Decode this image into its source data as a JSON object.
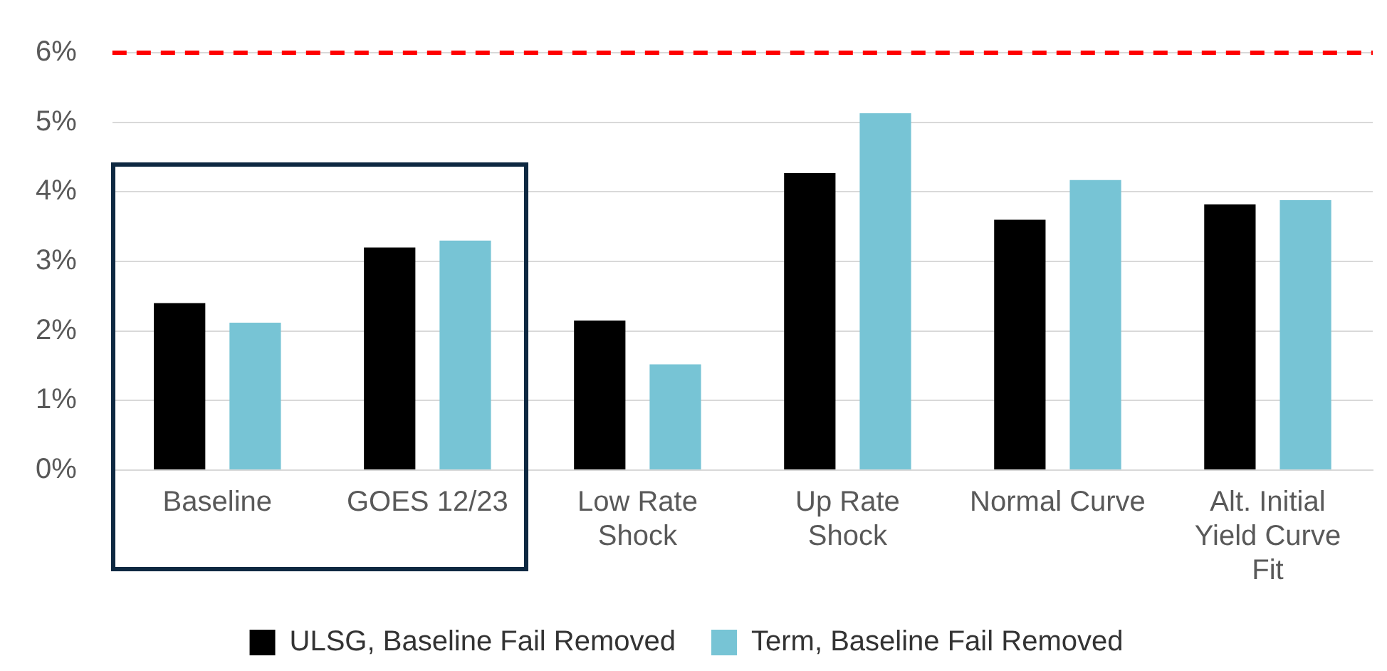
{
  "chart_data": {
    "type": "bar",
    "categories": [
      "Baseline",
      "GOES 12/23",
      "Low Rate Shock",
      "Up Rate Shock",
      "Normal Curve",
      "Alt. Initial Yield Curve Fit"
    ],
    "series": [
      {
        "name": "ULSG, Baseline Fail Removed",
        "color": "#000000",
        "values": [
          2.4,
          3.2,
          2.15,
          4.27,
          3.6,
          3.82
        ]
      },
      {
        "name": "Term, Baseline Fail Removed",
        "color": "#77c4d5",
        "values": [
          2.12,
          3.3,
          1.52,
          5.13,
          4.17,
          3.88
        ]
      }
    ],
    "ylim": [
      0,
      6
    ],
    "yticks": [
      {
        "value": 0,
        "label": "0%"
      },
      {
        "value": 1,
        "label": "1%"
      },
      {
        "value": 2,
        "label": "2%"
      },
      {
        "value": 3,
        "label": "3%"
      },
      {
        "value": 4,
        "label": "4%"
      },
      {
        "value": 5,
        "label": "5%"
      },
      {
        "value": 6,
        "label": "6%"
      }
    ],
    "ref_lines": [
      {
        "axis": "y",
        "value": 6,
        "label": null,
        "color": "#ff0000",
        "line_style": "dashed"
      }
    ],
    "grid": "y",
    "legend": "bottom"
  }
}
